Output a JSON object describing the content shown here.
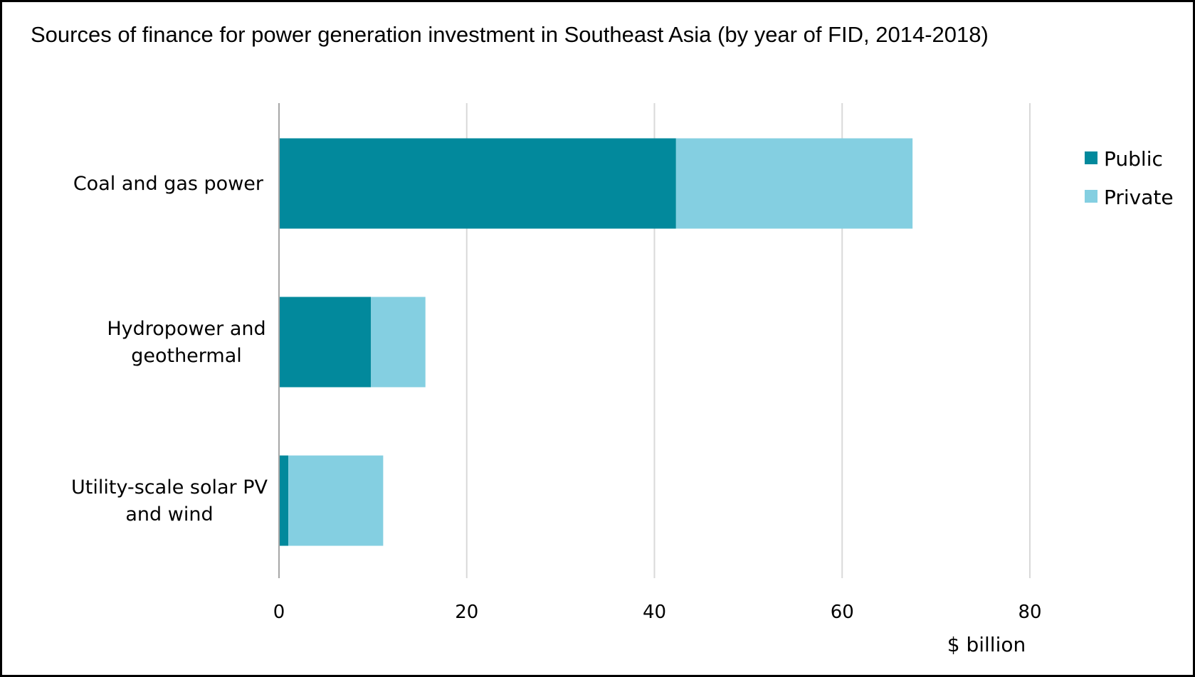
{
  "chart_data": {
    "type": "bar",
    "orientation": "horizontal",
    "stacked": true,
    "title": "Sources of finance for power generation investment in Southeast Asia (by year of FID, 2014-2018)",
    "categories": [
      [
        "Coal and gas power"
      ],
      [
        "Hydropower and",
        "geothermal"
      ],
      [
        "Utility-scale solar PV",
        "and wind"
      ]
    ],
    "series": [
      {
        "name": "Public",
        "color": "#02899c",
        "values": [
          42.3,
          9.8,
          1.0
        ]
      },
      {
        "name": "Private",
        "color": "#84cfe1",
        "values": [
          25.2,
          5.8,
          10.1
        ]
      }
    ],
    "xlim": [
      0,
      80
    ],
    "xticks": [
      0,
      20,
      40,
      60,
      80
    ],
    "tick_labels": [
      "0",
      "20",
      "40",
      "60",
      "80"
    ],
    "xlabel": "$ billion",
    "grid": true,
    "legend_position": "top-right"
  }
}
